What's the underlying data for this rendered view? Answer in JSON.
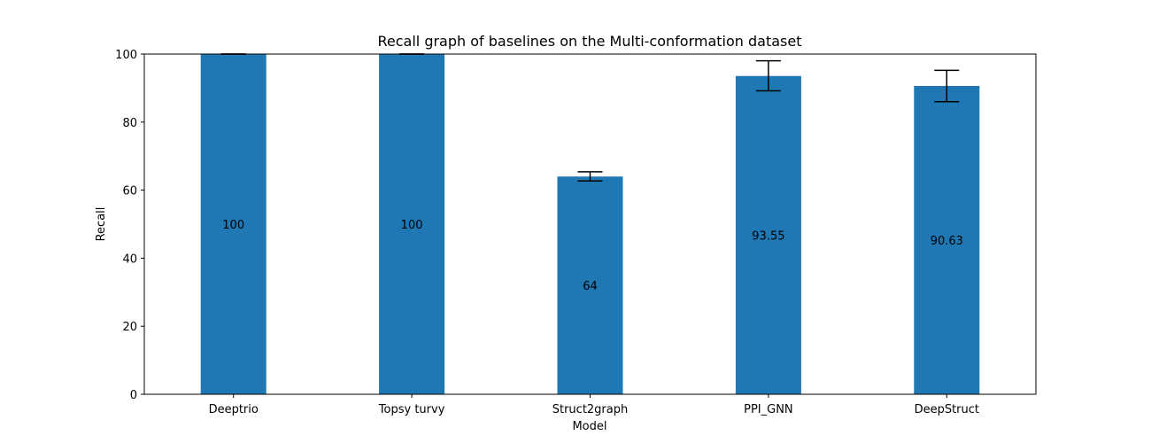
{
  "chart_data": {
    "type": "bar",
    "title": "Recall graph of baselines on the Multi-conformation dataset",
    "xlabel": "Model",
    "ylabel": "Recall",
    "ylim": [
      0,
      100
    ],
    "yticks": [
      0,
      20,
      40,
      60,
      80,
      100
    ],
    "categories": [
      "Deeptrio",
      "Topsy turvy",
      "Struct2graph",
      "PPI_GNN",
      "DeepStruct"
    ],
    "values": [
      100,
      100,
      64,
      93.55,
      90.63
    ],
    "value_labels": [
      "100",
      "100",
      "64",
      "93.55",
      "90.63"
    ],
    "error_bars": [
      {
        "low": 100,
        "high": 100
      },
      {
        "low": 100,
        "high": 100
      },
      {
        "low": 62.7,
        "high": 65.4
      },
      {
        "low": 89.2,
        "high": 98.0
      },
      {
        "low": 86.0,
        "high": 95.2
      }
    ],
    "bar_color": "#1f77b4",
    "errorbar_color": "#000000",
    "grid": false,
    "legend": "none"
  }
}
